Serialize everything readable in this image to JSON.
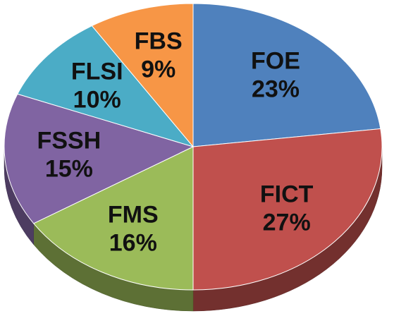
{
  "chart_data": {
    "type": "pie",
    "categories": [
      "FOE",
      "FICT",
      "FMS",
      "FSSH",
      "FLSI",
      "FBS"
    ],
    "values": [
      23,
      27,
      16,
      15,
      10,
      9
    ],
    "value_labels": [
      "23%",
      "27%",
      "16%",
      "15%",
      "10%",
      "9%"
    ],
    "colors": [
      "#4f81bd",
      "#c0504d",
      "#9bbb59",
      "#8064a2",
      "#4bacc6",
      "#f79646"
    ]
  }
}
